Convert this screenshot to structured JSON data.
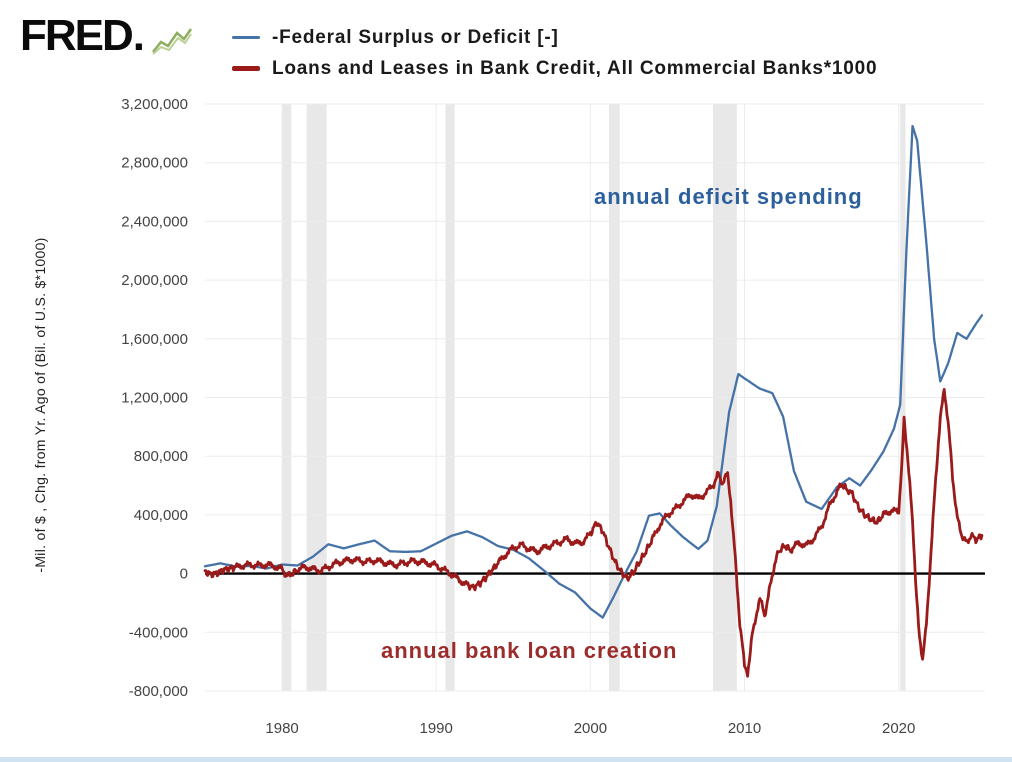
{
  "logo": {
    "text": "FRED",
    "dot": "."
  },
  "legend": {
    "series": [
      {
        "label": "-Federal Surplus or Deficit [-]",
        "color": "#4572a7"
      },
      {
        "label": "Loans and Leases in Bank Credit, All Commercial Banks*1000",
        "color": "#9b1b1b"
      }
    ]
  },
  "annotations": [
    {
      "text": "annual deficit spending",
      "color": "#2c5f9e"
    },
    {
      "text": "annual bank loan creation",
      "color": "#9c2b2b"
    }
  ],
  "chart_data": {
    "type": "line",
    "title": "",
    "y_axis_title": "-Mil. of $ , Chg. from Yr. Ago of (Bil. of U.S. $*1000)",
    "xlabel": "",
    "ylabel": "-Mil. of $ , Chg. from Yr. Ago of (Bil. of U.S. $*1000)",
    "xlim": [
      1975,
      2025.6
    ],
    "ylim": [
      -800000,
      3200000
    ],
    "x_ticks": [
      1980,
      1990,
      2000,
      2010,
      2020
    ],
    "y_ticks": [
      -800000,
      -400000,
      0,
      400000,
      800000,
      1200000,
      1600000,
      2000000,
      2400000,
      2800000,
      3200000
    ],
    "grid": true,
    "grid_color": "#ececec",
    "zero_line_color": "#000000",
    "recession_color": "#e8e8e8",
    "recession_bands": [
      [
        1980.0,
        1980.6
      ],
      [
        1981.6,
        1982.9
      ],
      [
        1990.6,
        1991.2
      ],
      [
        2001.2,
        2001.9
      ],
      [
        2007.95,
        2009.5
      ],
      [
        2020.1,
        2020.45
      ]
    ],
    "legend_position": "top",
    "series": [
      {
        "name": "-Federal Surplus or Deficit [-]",
        "color": "#4572a7",
        "width": 2.3,
        "noise": 0,
        "points": [
          [
            1975,
            50000
          ],
          [
            1976,
            70000
          ],
          [
            1977,
            48000
          ],
          [
            1978,
            52000
          ],
          [
            1979,
            35000
          ],
          [
            1980,
            62000
          ],
          [
            1981,
            55000
          ],
          [
            1982,
            115000
          ],
          [
            1983,
            200000
          ],
          [
            1984,
            172000
          ],
          [
            1985,
            200000
          ],
          [
            1986,
            225000
          ],
          [
            1987,
            152000
          ],
          [
            1988,
            148000
          ],
          [
            1989,
            152000
          ],
          [
            1990,
            205000
          ],
          [
            1991,
            258000
          ],
          [
            1992,
            288000
          ],
          [
            1993,
            248000
          ],
          [
            1994,
            188000
          ],
          [
            1995,
            162000
          ],
          [
            1996,
            105000
          ],
          [
            1997,
            20000
          ],
          [
            1998,
            -70000
          ],
          [
            1999,
            -128000
          ],
          [
            2000,
            -238000
          ],
          [
            2000.8,
            -300000
          ],
          [
            2001.5,
            -160000
          ],
          [
            2002.2,
            -10000
          ],
          [
            2003,
            150000
          ],
          [
            2003.8,
            395000
          ],
          [
            2004.5,
            410000
          ],
          [
            2005.2,
            330000
          ],
          [
            2006,
            250000
          ],
          [
            2007,
            168000
          ],
          [
            2007.6,
            225000
          ],
          [
            2008.2,
            460000
          ],
          [
            2009,
            1100000
          ],
          [
            2009.6,
            1360000
          ],
          [
            2010,
            1330000
          ],
          [
            2011,
            1260000
          ],
          [
            2011.8,
            1230000
          ],
          [
            2012.5,
            1070000
          ],
          [
            2013.2,
            700000
          ],
          [
            2014,
            490000
          ],
          [
            2015,
            440000
          ],
          [
            2016,
            590000
          ],
          [
            2016.8,
            650000
          ],
          [
            2017.5,
            600000
          ],
          [
            2018.2,
            700000
          ],
          [
            2019,
            830000
          ],
          [
            2019.7,
            990000
          ],
          [
            2020.1,
            1150000
          ],
          [
            2020.5,
            2200000
          ],
          [
            2020.9,
            3050000
          ],
          [
            2021.2,
            2950000
          ],
          [
            2021.8,
            2250000
          ],
          [
            2022.3,
            1600000
          ],
          [
            2022.7,
            1310000
          ],
          [
            2023.2,
            1430000
          ],
          [
            2023.8,
            1640000
          ],
          [
            2024.4,
            1600000
          ],
          [
            2025,
            1700000
          ],
          [
            2025.4,
            1760000
          ]
        ]
      },
      {
        "name": "Loans and Leases in Bank Credit, All Commercial Banks*1000",
        "color": "#9b1b1b",
        "width": 2.8,
        "noise": 25000,
        "points": [
          [
            1975,
            15000
          ],
          [
            1975.4,
            -5000
          ],
          [
            1975.8,
            5000
          ],
          [
            1976.2,
            25000
          ],
          [
            1976.6,
            35000
          ],
          [
            1977,
            45000
          ],
          [
            1977.5,
            55000
          ],
          [
            1978,
            60000
          ],
          [
            1978.5,
            55000
          ],
          [
            1979,
            60000
          ],
          [
            1979.5,
            50000
          ],
          [
            1980,
            30000
          ],
          [
            1980.3,
            -15000
          ],
          [
            1980.6,
            -5000
          ],
          [
            1981,
            25000
          ],
          [
            1981.5,
            45000
          ],
          [
            1982,
            30000
          ],
          [
            1982.5,
            20000
          ],
          [
            1983,
            45000
          ],
          [
            1983.5,
            70000
          ],
          [
            1984,
            85000
          ],
          [
            1984.5,
            95000
          ],
          [
            1985,
            90000
          ],
          [
            1985.5,
            80000
          ],
          [
            1986,
            90000
          ],
          [
            1986.5,
            80000
          ],
          [
            1987,
            65000
          ],
          [
            1987.5,
            60000
          ],
          [
            1988,
            75000
          ],
          [
            1988.5,
            85000
          ],
          [
            1989,
            80000
          ],
          [
            1989.5,
            70000
          ],
          [
            1990,
            55000
          ],
          [
            1990.5,
            25000
          ],
          [
            1991,
            -5000
          ],
          [
            1991.5,
            -45000
          ],
          [
            1992,
            -75000
          ],
          [
            1992.4,
            -95000
          ],
          [
            1992.8,
            -70000
          ],
          [
            1993.2,
            -30000
          ],
          [
            1993.6,
            20000
          ],
          [
            1994,
            70000
          ],
          [
            1994.5,
            130000
          ],
          [
            1995,
            175000
          ],
          [
            1995.5,
            195000
          ],
          [
            1996,
            170000
          ],
          [
            1996.5,
            150000
          ],
          [
            1997,
            175000
          ],
          [
            1997.5,
            195000
          ],
          [
            1998,
            215000
          ],
          [
            1998.5,
            235000
          ],
          [
            1999,
            205000
          ],
          [
            1999.5,
            215000
          ],
          [
            2000,
            270000
          ],
          [
            2000.4,
            350000
          ],
          [
            2000.8,
            290000
          ],
          [
            2001.2,
            180000
          ],
          [
            2001.6,
            80000
          ],
          [
            2002,
            10000
          ],
          [
            2002.4,
            -35000
          ],
          [
            2002.8,
            10000
          ],
          [
            2003.2,
            80000
          ],
          [
            2003.6,
            150000
          ],
          [
            2004,
            230000
          ],
          [
            2004.5,
            330000
          ],
          [
            2005,
            400000
          ],
          [
            2005.5,
            440000
          ],
          [
            2006,
            490000
          ],
          [
            2006.5,
            540000
          ],
          [
            2007,
            510000
          ],
          [
            2007.5,
            550000
          ],
          [
            2008,
            610000
          ],
          [
            2008.3,
            680000
          ],
          [
            2008.6,
            610000
          ],
          [
            2008.9,
            690000
          ],
          [
            2009.1,
            500000
          ],
          [
            2009.4,
            100000
          ],
          [
            2009.7,
            -350000
          ],
          [
            2010,
            -620000
          ],
          [
            2010.2,
            -680000
          ],
          [
            2010.5,
            -420000
          ],
          [
            2010.8,
            -260000
          ],
          [
            2011,
            -160000
          ],
          [
            2011.3,
            -290000
          ],
          [
            2011.6,
            -120000
          ],
          [
            2011.9,
            40000
          ],
          [
            2012.2,
            150000
          ],
          [
            2012.6,
            190000
          ],
          [
            2013,
            160000
          ],
          [
            2013.5,
            210000
          ],
          [
            2014,
            190000
          ],
          [
            2014.5,
            240000
          ],
          [
            2015,
            320000
          ],
          [
            2015.5,
            460000
          ],
          [
            2016,
            560000
          ],
          [
            2016.3,
            610000
          ],
          [
            2016.7,
            570000
          ],
          [
            2017,
            540000
          ],
          [
            2017.4,
            450000
          ],
          [
            2017.8,
            400000
          ],
          [
            2018.2,
            370000
          ],
          [
            2018.6,
            350000
          ],
          [
            2019,
            400000
          ],
          [
            2019.5,
            430000
          ],
          [
            2020,
            420000
          ],
          [
            2020.2,
            750000
          ],
          [
            2020.35,
            1060000
          ],
          [
            2020.6,
            780000
          ],
          [
            2020.9,
            350000
          ],
          [
            2021.1,
            -50000
          ],
          [
            2021.35,
            -420000
          ],
          [
            2021.55,
            -590000
          ],
          [
            2021.8,
            -350000
          ],
          [
            2022.1,
            150000
          ],
          [
            2022.4,
            650000
          ],
          [
            2022.7,
            1050000
          ],
          [
            2022.95,
            1260000
          ],
          [
            2023.2,
            1050000
          ],
          [
            2023.5,
            650000
          ],
          [
            2023.8,
            380000
          ],
          [
            2024.1,
            260000
          ],
          [
            2024.4,
            210000
          ],
          [
            2024.7,
            260000
          ],
          [
            2025,
            230000
          ],
          [
            2025.4,
            260000
          ]
        ]
      }
    ]
  }
}
